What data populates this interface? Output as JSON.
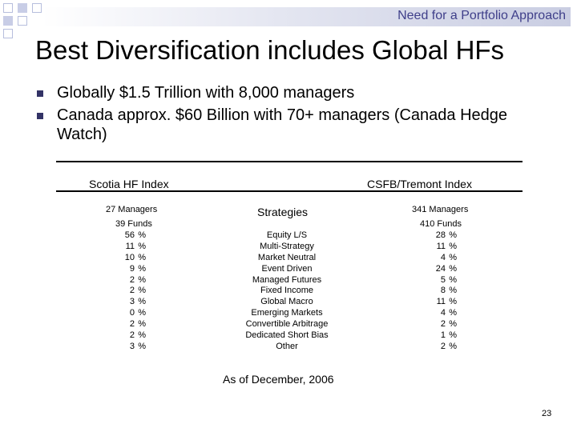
{
  "header": {
    "section_label": "Need for a Portfolio Approach"
  },
  "title": "Best Diversification includes Global HFs",
  "bullets": [
    "Globally $1.5 Trillion with 8,000 managers",
    "Canada approx. $60 Billion with 70+ managers (Canada Hedge Watch)"
  ],
  "table": {
    "left_index": "Scotia HF Index",
    "right_index": "CSFB/Tremont Index",
    "strategies_header": "Strategies",
    "left_managers": "27 Managers",
    "left_funds": "39 Funds",
    "right_managers": "341 Managers",
    "right_funds": "410 Funds",
    "percent_symbol": "%",
    "rows": [
      {
        "strategy": "Equity L/S",
        "scotia": "56",
        "csfb": "28"
      },
      {
        "strategy": "Multi-Strategy",
        "scotia": "11",
        "csfb": "11"
      },
      {
        "strategy": "Market Neutral",
        "scotia": "10",
        "csfb": "4"
      },
      {
        "strategy": "Event Driven",
        "scotia": "9",
        "csfb": "24"
      },
      {
        "strategy": "Managed Futures",
        "scotia": "2",
        "csfb": "5"
      },
      {
        "strategy": "Fixed Income",
        "scotia": "2",
        "csfb": "8"
      },
      {
        "strategy": "Global Macro",
        "scotia": "3",
        "csfb": "11"
      },
      {
        "strategy": "Emerging Markets",
        "scotia": "0",
        "csfb": "4"
      },
      {
        "strategy": "Convertible Arbitrage",
        "scotia": "2",
        "csfb": "2"
      },
      {
        "strategy": "Dedicated Short Bias",
        "scotia": "2",
        "csfb": "1"
      },
      {
        "strategy": "Other",
        "scotia": "3",
        "csfb": "2"
      }
    ]
  },
  "note": "As of December, 2006",
  "page_number": "23",
  "colors": {
    "header_text": "#3f3f8a",
    "bullet": "#333366",
    "band": "#c9cde2"
  }
}
